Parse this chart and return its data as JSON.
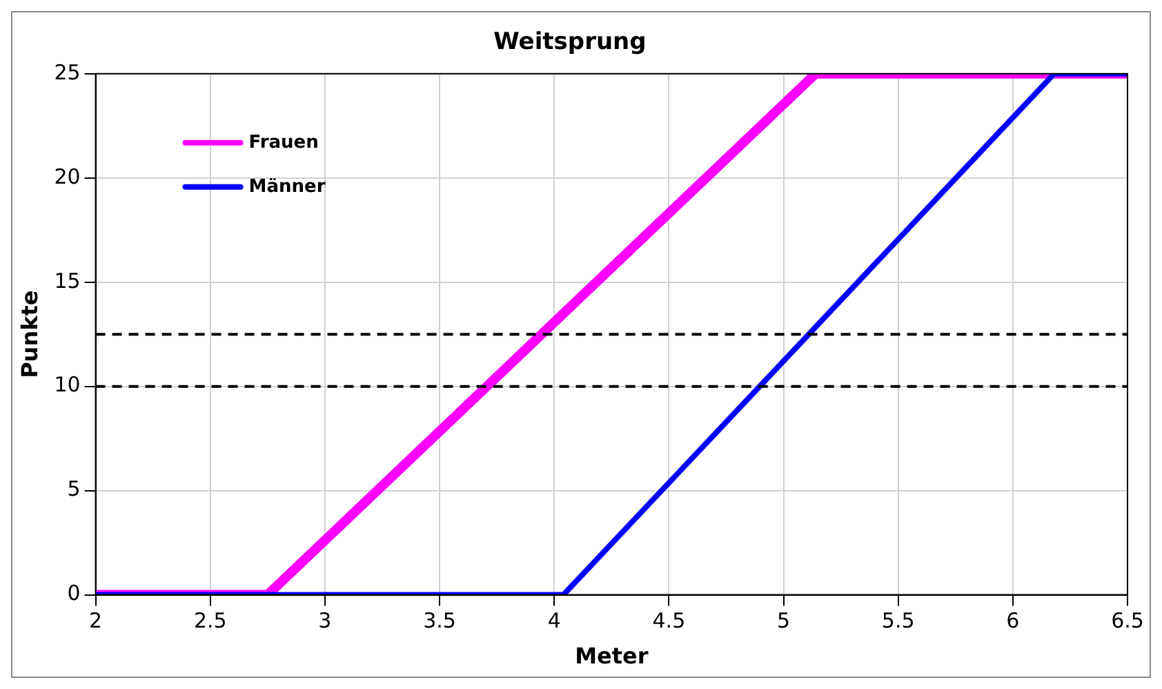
{
  "chart_data": {
    "type": "line",
    "title": "Weitsprung",
    "xlabel": "Meter",
    "ylabel": "Punkte",
    "xlim": [
      2,
      6.5
    ],
    "xticks": [
      2,
      2.5,
      3,
      3.5,
      4,
      4.5,
      5,
      5.5,
      6,
      6.5
    ],
    "ylim": [
      0,
      25
    ],
    "yticks": [
      0,
      5,
      10,
      15,
      20,
      25
    ],
    "grid": true,
    "legend": "top left",
    "line_style": "solid",
    "marker": "none",
    "series": [
      {
        "name": "Frauen",
        "color": "#ff00ff",
        "x": [
          2,
          2.75,
          5.14,
          6.5
        ],
        "values": [
          0,
          0,
          25,
          25
        ]
      },
      {
        "name": "Männer",
        "color": "#0000ff",
        "x": [
          2,
          4.04,
          6.18,
          6.5
        ],
        "values": [
          0,
          0,
          25,
          25
        ]
      }
    ],
    "ref_lines": [
      {
        "axis": "y",
        "value": 12.5,
        "color": "#000000",
        "line_style": "dashed"
      },
      {
        "axis": "y",
        "value": 10,
        "color": "#000000",
        "line_style": "dashed"
      }
    ]
  }
}
